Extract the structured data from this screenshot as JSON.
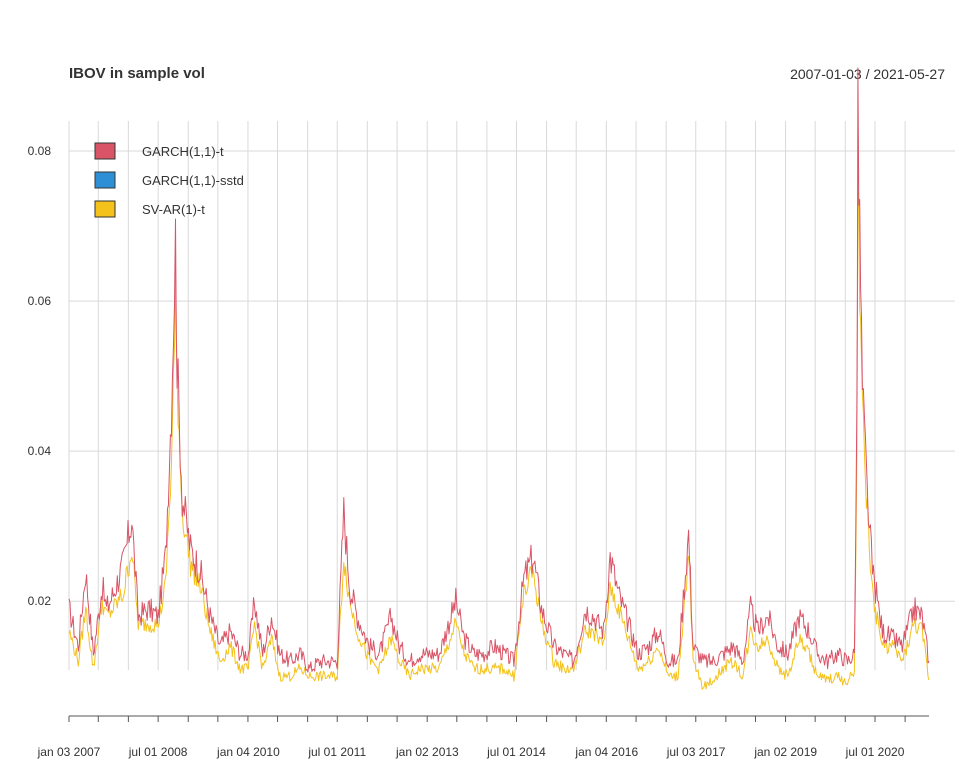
{
  "chart_data": {
    "type": "line",
    "title": "IBOV in sample vol",
    "date_range": "2007-01-03 / 2021-05-27",
    "xlabel": "",
    "ylabel": "",
    "x_range": [
      "2007-01-03",
      "2021-05-27"
    ],
    "ylim": [
      0.0055,
      0.084
    ],
    "y_ticks": [
      0.02,
      0.04,
      0.06,
      0.08
    ],
    "y_tick_labels": [
      "0.02",
      "0.04",
      "0.06",
      "0.08"
    ],
    "x_tick_labels": [
      "jan 03 2007",
      "jul 01 2008",
      "jan 04 2010",
      "jul 01 2011",
      "jan 02 2013",
      "jul 01 2014",
      "jan 04 2016",
      "jul 03 2017",
      "jan 02 2019",
      "jul 01 2020"
    ],
    "x_tick_dates": [
      "2007-01-03",
      "2008-07-01",
      "2010-01-04",
      "2011-07-01",
      "2013-01-02",
      "2014-07-01",
      "2016-01-04",
      "2017-07-03",
      "2019-01-02",
      "2020-07-01"
    ],
    "grid": true,
    "legend_position": "top-left",
    "series": [
      {
        "name": "GARCH(1,1)-t",
        "color": "#D95466",
        "x": [
          "2007-01-03",
          "2007-03-01",
          "2007-04-15",
          "2007-06-01",
          "2007-07-25",
          "2007-08-20",
          "2007-10-01",
          "2007-12-01",
          "2008-01-22",
          "2008-03-01",
          "2008-05-01",
          "2008-07-01",
          "2008-08-15",
          "2008-09-20",
          "2008-10-15",
          "2008-10-25",
          "2008-11-25",
          "2009-01-15",
          "2009-03-15",
          "2009-05-15",
          "2009-07-15",
          "2009-09-15",
          "2009-11-15",
          "2010-01-04",
          "2010-02-10",
          "2010-04-01",
          "2010-05-25",
          "2010-07-15",
          "2010-09-15",
          "2010-11-15",
          "2011-01-15",
          "2011-03-15",
          "2011-05-15",
          "2011-07-01",
          "2011-08-10",
          "2011-09-15",
          "2011-11-01",
          "2012-01-15",
          "2012-03-15",
          "2012-05-25",
          "2012-07-15",
          "2012-09-15",
          "2012-11-15",
          "2013-01-02",
          "2013-03-15",
          "2013-06-25",
          "2013-08-15",
          "2013-10-15",
          "2013-12-15",
          "2014-02-15",
          "2014-04-15",
          "2014-06-15",
          "2014-08-15",
          "2014-10-10",
          "2014-12-01",
          "2015-02-15",
          "2015-04-15",
          "2015-06-15",
          "2015-08-25",
          "2015-10-15",
          "2015-12-15",
          "2016-01-25",
          "2016-03-15",
          "2016-05-15",
          "2016-07-15",
          "2016-09-15",
          "2016-11-15",
          "2017-01-15",
          "2017-03-15",
          "2017-05-18",
          "2017-06-15",
          "2017-08-15",
          "2017-10-15",
          "2017-12-15",
          "2018-02-15",
          "2018-04-15",
          "2018-06-01",
          "2018-07-15",
          "2018-09-15",
          "2018-11-15",
          "2019-01-15",
          "2019-03-25",
          "2019-05-25",
          "2019-07-15",
          "2019-09-15",
          "2019-11-15",
          "2020-01-15",
          "2020-02-26",
          "2020-03-12",
          "2020-03-18",
          "2020-04-15",
          "2020-05-15",
          "2020-06-15",
          "2020-08-15",
          "2020-10-15",
          "2020-12-15",
          "2021-02-25",
          "2021-04-15",
          "2021-05-27"
        ],
        "values": [
          0.019,
          0.014,
          0.024,
          0.013,
          0.022,
          0.019,
          0.021,
          0.025,
          0.031,
          0.018,
          0.019,
          0.018,
          0.026,
          0.046,
          0.068,
          0.052,
          0.034,
          0.027,
          0.024,
          0.018,
          0.014,
          0.016,
          0.013,
          0.013,
          0.02,
          0.013,
          0.018,
          0.013,
          0.012,
          0.013,
          0.011,
          0.012,
          0.012,
          0.012,
          0.032,
          0.022,
          0.018,
          0.014,
          0.013,
          0.018,
          0.014,
          0.012,
          0.013,
          0.013,
          0.013,
          0.02,
          0.015,
          0.013,
          0.013,
          0.014,
          0.013,
          0.012,
          0.023,
          0.026,
          0.019,
          0.014,
          0.013,
          0.012,
          0.019,
          0.018,
          0.016,
          0.026,
          0.021,
          0.017,
          0.013,
          0.014,
          0.016,
          0.012,
          0.012,
          0.029,
          0.014,
          0.012,
          0.012,
          0.013,
          0.014,
          0.012,
          0.019,
          0.016,
          0.018,
          0.014,
          0.013,
          0.018,
          0.016,
          0.013,
          0.012,
          0.013,
          0.012,
          0.013,
          0.045,
          0.084,
          0.048,
          0.034,
          0.024,
          0.016,
          0.015,
          0.014,
          0.019,
          0.018,
          0.012
        ]
      },
      {
        "name": "GARCH(1,1)-sstd",
        "color": "#2F8FD6",
        "x": [],
        "values": []
      },
      {
        "name": "SV-AR(1)-t",
        "color": "#F4C21A",
        "x": [
          "2007-01-03",
          "2007-03-01",
          "2007-04-15",
          "2007-06-01",
          "2007-07-25",
          "2007-08-20",
          "2007-10-01",
          "2007-12-01",
          "2008-01-22",
          "2008-03-01",
          "2008-05-01",
          "2008-07-01",
          "2008-08-15",
          "2008-09-20",
          "2008-10-15",
          "2008-10-25",
          "2008-11-25",
          "2009-01-15",
          "2009-03-15",
          "2009-05-15",
          "2009-07-15",
          "2009-09-15",
          "2009-11-15",
          "2010-01-04",
          "2010-02-10",
          "2010-04-01",
          "2010-05-25",
          "2010-07-15",
          "2010-09-15",
          "2010-11-15",
          "2011-01-15",
          "2011-03-15",
          "2011-05-15",
          "2011-07-01",
          "2011-08-10",
          "2011-09-15",
          "2011-11-01",
          "2012-01-15",
          "2012-03-15",
          "2012-05-25",
          "2012-07-15",
          "2012-09-15",
          "2012-11-15",
          "2013-01-02",
          "2013-03-15",
          "2013-06-25",
          "2013-08-15",
          "2013-10-15",
          "2013-12-15",
          "2014-02-15",
          "2014-04-15",
          "2014-06-15",
          "2014-08-15",
          "2014-10-10",
          "2014-12-01",
          "2015-02-15",
          "2015-04-15",
          "2015-06-15",
          "2015-08-25",
          "2015-10-15",
          "2015-12-15",
          "2016-01-25",
          "2016-03-15",
          "2016-05-15",
          "2016-07-15",
          "2016-09-15",
          "2016-11-15",
          "2017-01-15",
          "2017-03-15",
          "2017-05-18",
          "2017-06-15",
          "2017-08-15",
          "2017-10-15",
          "2017-12-15",
          "2018-02-15",
          "2018-04-15",
          "2018-06-01",
          "2018-07-15",
          "2018-09-15",
          "2018-11-15",
          "2019-01-15",
          "2019-03-25",
          "2019-05-25",
          "2019-07-15",
          "2019-09-15",
          "2019-11-15",
          "2020-01-15",
          "2020-02-26",
          "2020-03-12",
          "2020-03-18",
          "2020-04-15",
          "2020-05-15",
          "2020-06-15",
          "2020-08-15",
          "2020-10-15",
          "2020-12-15",
          "2021-02-25",
          "2021-04-15",
          "2021-05-27"
        ],
        "values": [
          0.016,
          0.012,
          0.019,
          0.011,
          0.02,
          0.018,
          0.019,
          0.021,
          0.027,
          0.017,
          0.017,
          0.017,
          0.022,
          0.038,
          0.06,
          0.05,
          0.032,
          0.025,
          0.022,
          0.016,
          0.012,
          0.014,
          0.011,
          0.011,
          0.017,
          0.011,
          0.015,
          0.01,
          0.01,
          0.011,
          0.01,
          0.01,
          0.01,
          0.01,
          0.026,
          0.02,
          0.016,
          0.012,
          0.011,
          0.015,
          0.012,
          0.01,
          0.011,
          0.011,
          0.011,
          0.017,
          0.013,
          0.011,
          0.011,
          0.011,
          0.011,
          0.01,
          0.021,
          0.024,
          0.017,
          0.012,
          0.011,
          0.011,
          0.016,
          0.016,
          0.014,
          0.022,
          0.019,
          0.015,
          0.011,
          0.012,
          0.014,
          0.01,
          0.01,
          0.026,
          0.012,
          0.0085,
          0.0095,
          0.011,
          0.012,
          0.01,
          0.016,
          0.014,
          0.015,
          0.011,
          0.01,
          0.015,
          0.013,
          0.01,
          0.0095,
          0.01,
          0.009,
          0.011,
          0.038,
          0.075,
          0.045,
          0.032,
          0.021,
          0.014,
          0.014,
          0.012,
          0.017,
          0.016,
          0.0095
        ]
      }
    ]
  }
}
